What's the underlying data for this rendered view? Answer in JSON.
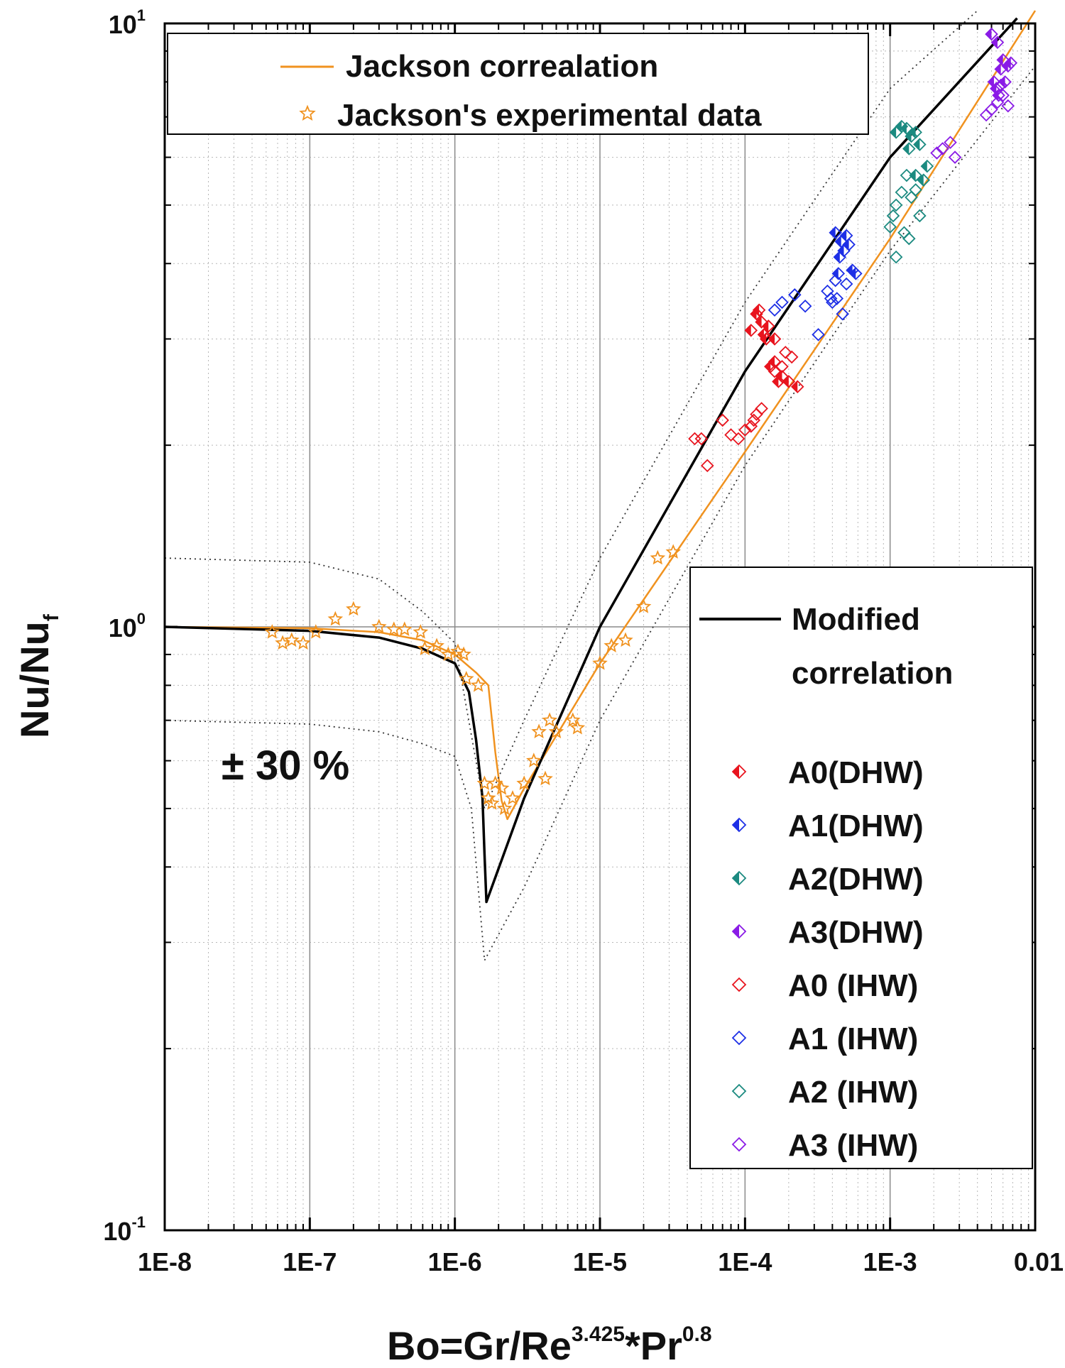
{
  "chart_data": {
    "type": "scatter",
    "scale": "log-log",
    "xlabel": "Bo=Gr/Re",
    "xlabel_sup1": "3.425",
    "xlabel_mid": "*Pr",
    "xlabel_sup2": "0.8",
    "ylabel": "Nu/Nu",
    "ylabel_sub": "f",
    "xlim": [
      1e-08,
      0.01
    ],
    "ylim": [
      0.1,
      10
    ],
    "x_tick_labels": [
      "1E-8",
      "1E-7",
      "1E-6",
      "1E-5",
      "1E-4",
      "1E-3",
      "0.01"
    ],
    "y_tick_labels": [
      {
        "base": "10",
        "exp": "-1"
      },
      {
        "base": "10",
        "exp": "0"
      },
      {
        "base": "10",
        "exp": "1"
      }
    ],
    "grid": true,
    "annotation": "± 30 %",
    "legend_top": {
      "placement": "top-left",
      "items": [
        {
          "label": "Jackson correalation",
          "marker": "line",
          "color": "#f0921f"
        },
        {
          "label": "Jackson's experimental data",
          "marker": "star",
          "color": "#f0921f"
        }
      ]
    },
    "legend_right": {
      "placement": "right",
      "line_label_1": "Modified",
      "line_label_2": "correlation",
      "line_color": "#000000",
      "items": [
        {
          "label": "A0(DHW)",
          "marker": "diamond-half",
          "color": "#e8141e"
        },
        {
          "label": "A1(DHW)",
          "marker": "diamond-half",
          "color": "#1d2fe6"
        },
        {
          "label": "A2(DHW)",
          "marker": "diamond-half",
          "color": "#1b8a80"
        },
        {
          "label": "A3(DHW)",
          "marker": "diamond-half",
          "color": "#8a1be6"
        },
        {
          "label": "A0 (IHW)",
          "marker": "diamond-open",
          "color": "#e8141e"
        },
        {
          "label": "A1 (IHW)",
          "marker": "diamond-open",
          "color": "#1d2fe6"
        },
        {
          "label": "A2 (IHW)",
          "marker": "diamond-open",
          "color": "#1b8a80"
        },
        {
          "label": "A3 (IHW)",
          "marker": "diamond-open",
          "color": "#8a1be6"
        }
      ]
    },
    "series": [
      {
        "name": "Jackson correalation",
        "kind": "line",
        "color": "#f0921f",
        "points": [
          [
            1e-08,
            1.0
          ],
          [
            1e-07,
            0.995
          ],
          [
            3e-07,
            0.98
          ],
          [
            6e-07,
            0.95
          ],
          [
            1e-06,
            0.9
          ],
          [
            1.4e-06,
            0.84
          ],
          [
            1.7e-06,
            0.8
          ],
          [
            1.9e-06,
            0.62
          ],
          [
            2.1e-06,
            0.515
          ],
          [
            2.3e-06,
            0.48
          ],
          [
            3e-06,
            0.54
          ],
          [
            5e-06,
            0.66
          ],
          [
            1e-05,
            0.87
          ],
          [
            0.0001,
            1.95
          ],
          [
            0.001,
            4.4
          ],
          [
            0.01,
            10.5
          ]
        ]
      },
      {
        "name": "Modified correlation",
        "kind": "line",
        "color": "#000000",
        "points": [
          [
            1e-08,
            1.0
          ],
          [
            1e-07,
            0.985
          ],
          [
            3e-07,
            0.96
          ],
          [
            6e-07,
            0.92
          ],
          [
            1e-06,
            0.87
          ],
          [
            1.25e-06,
            0.78
          ],
          [
            1.4e-06,
            0.65
          ],
          [
            1.55e-06,
            0.52
          ],
          [
            1.6e-06,
            0.42
          ],
          [
            1.65e-06,
            0.35
          ],
          [
            3e-06,
            0.52
          ],
          [
            1e-05,
            1.0
          ],
          [
            0.0001,
            2.65
          ],
          [
            0.001,
            6.0
          ],
          [
            0.0075,
            10.2
          ]
        ]
      },
      {
        "name": "+30%",
        "kind": "dotted",
        "color": "#333333",
        "points": [
          [
            1e-08,
            1.3
          ],
          [
            1e-07,
            1.28
          ],
          [
            3e-07,
            1.2
          ],
          [
            6e-07,
            1.06
          ],
          [
            1e-06,
            0.94
          ],
          [
            1.6e-06,
            0.5
          ],
          [
            3e-06,
            0.7
          ],
          [
            1e-05,
            1.3
          ],
          [
            0.0001,
            3.45
          ],
          [
            0.001,
            7.8
          ],
          [
            0.004,
            10.5
          ]
        ]
      },
      {
        "name": "-30%",
        "kind": "dotted",
        "color": "#333333",
        "points": [
          [
            1e-08,
            0.7
          ],
          [
            1e-07,
            0.69
          ],
          [
            3e-07,
            0.67
          ],
          [
            6e-07,
            0.64
          ],
          [
            1e-06,
            0.61
          ],
          [
            1.3e-06,
            0.5
          ],
          [
            1.6e-06,
            0.28
          ],
          [
            3e-06,
            0.37
          ],
          [
            1e-05,
            0.7
          ],
          [
            0.0001,
            1.85
          ],
          [
            0.001,
            4.2
          ],
          [
            0.01,
            8.5
          ]
        ]
      },
      {
        "name": "Jackson's experimental data",
        "kind": "star",
        "color": "#f0921f",
        "points": [
          [
            5.5e-08,
            0.98
          ],
          [
            6.5e-08,
            0.94
          ],
          [
            7.5e-08,
            0.95
          ],
          [
            9e-08,
            0.94
          ],
          [
            1.1e-07,
            0.98
          ],
          [
            1.5e-07,
            1.03
          ],
          [
            2e-07,
            1.07
          ],
          [
            3e-07,
            1.0
          ],
          [
            3.8e-07,
            0.99
          ],
          [
            4.5e-07,
            0.99
          ],
          [
            5.8e-07,
            0.98
          ],
          [
            6.2e-07,
            0.92
          ],
          [
            7.5e-07,
            0.93
          ],
          [
            9e-07,
            0.9
          ],
          [
            1.05e-06,
            0.91
          ],
          [
            1.15e-06,
            0.9
          ],
          [
            1.2e-06,
            0.82
          ],
          [
            1.45e-06,
            0.8
          ],
          [
            1.6e-06,
            0.55
          ],
          [
            1.7e-06,
            0.52
          ],
          [
            1.8e-06,
            0.51
          ],
          [
            1.9e-06,
            0.55
          ],
          [
            2.1e-06,
            0.54
          ],
          [
            2.2e-06,
            0.5
          ],
          [
            2.5e-06,
            0.52
          ],
          [
            3e-06,
            0.55
          ],
          [
            3.5e-06,
            0.6
          ],
          [
            3.8e-06,
            0.67
          ],
          [
            4.2e-06,
            0.56
          ],
          [
            4.5e-06,
            0.7
          ],
          [
            5e-06,
            0.67
          ],
          [
            6.5e-06,
            0.7
          ],
          [
            7e-06,
            0.68
          ],
          [
            1e-05,
            0.87
          ],
          [
            1.2e-05,
            0.93
          ],
          [
            1.5e-05,
            0.95
          ],
          [
            2e-05,
            1.08
          ],
          [
            2.5e-05,
            1.3
          ],
          [
            3.2e-05,
            1.33
          ]
        ]
      },
      {
        "name": "A0(DHW)",
        "kind": "diamond-half",
        "color": "#e8141e",
        "points": [
          [
            0.00011,
            3.1
          ],
          [
            0.00012,
            3.3
          ],
          [
            0.00013,
            3.2
          ],
          [
            0.000135,
            3.05
          ],
          [
            0.000145,
            3.15
          ],
          [
            0.00016,
            3.0
          ],
          [
            0.00015,
            2.7
          ],
          [
            0.00016,
            2.75
          ],
          [
            0.00018,
            2.6
          ],
          [
            0.00017,
            2.55
          ],
          [
            0.0002,
            2.55
          ],
          [
            0.00023,
            2.5
          ],
          [
            0.000125,
            3.35
          ],
          [
            0.00014,
            3.0
          ]
        ]
      },
      {
        "name": "A1(DHW)",
        "kind": "diamond-half",
        "color": "#1d2fe6",
        "points": [
          [
            0.00042,
            4.5
          ],
          [
            0.00046,
            4.35
          ],
          [
            0.0005,
            4.45
          ],
          [
            0.00048,
            4.2
          ],
          [
            0.00052,
            4.3
          ],
          [
            0.00044,
            3.85
          ],
          [
            0.00055,
            3.9
          ],
          [
            0.00045,
            4.1
          ],
          [
            0.00058,
            3.85
          ]
        ]
      },
      {
        "name": "A2(DHW)",
        "kind": "diamond-half",
        "color": "#1b8a80",
        "points": [
          [
            0.0011,
            6.6
          ],
          [
            0.0012,
            6.75
          ],
          [
            0.0013,
            6.7
          ],
          [
            0.0014,
            6.5
          ],
          [
            0.0015,
            6.6
          ],
          [
            0.0016,
            6.3
          ],
          [
            0.00135,
            6.2
          ],
          [
            0.0017,
            5.5
          ],
          [
            0.0015,
            5.6
          ],
          [
            0.0018,
            5.8
          ]
        ]
      },
      {
        "name": "A3(DHW)",
        "kind": "diamond-half",
        "color": "#8a1be6",
        "points": [
          [
            0.005,
            9.6
          ],
          [
            0.0055,
            9.3
          ],
          [
            0.006,
            8.7
          ],
          [
            0.0058,
            8.4
          ],
          [
            0.0065,
            8.5
          ],
          [
            0.0052,
            8.0
          ],
          [
            0.0062,
            8.0
          ],
          [
            0.0056,
            7.6
          ],
          [
            0.0068,
            8.6
          ],
          [
            0.0054,
            7.8
          ]
        ]
      },
      {
        "name": "A0 (IHW)",
        "kind": "diamond-open",
        "color": "#e8141e",
        "points": [
          [
            4.5e-05,
            2.05
          ],
          [
            5e-05,
            2.05
          ],
          [
            5.5e-05,
            1.85
          ],
          [
            7e-05,
            2.2
          ],
          [
            8e-05,
            2.08
          ],
          [
            9e-05,
            2.05
          ],
          [
            0.0001,
            2.12
          ],
          [
            0.00011,
            2.15
          ],
          [
            0.00012,
            2.25
          ],
          [
            0.00013,
            2.3
          ],
          [
            0.000115,
            2.2
          ],
          [
            0.00016,
            2.65
          ],
          [
            0.00018,
            2.7
          ],
          [
            0.00019,
            2.85
          ],
          [
            0.00021,
            2.8
          ]
        ]
      },
      {
        "name": "A1 (IHW)",
        "kind": "diamond-open",
        "color": "#1d2fe6",
        "points": [
          [
            0.00016,
            3.35
          ],
          [
            0.00018,
            3.45
          ],
          [
            0.00022,
            3.55
          ],
          [
            0.00026,
            3.4
          ],
          [
            0.00032,
            3.05
          ],
          [
            0.00037,
            3.6
          ],
          [
            0.0004,
            3.45
          ],
          [
            0.00043,
            3.5
          ],
          [
            0.00047,
            3.3
          ],
          [
            0.00042,
            3.75
          ],
          [
            0.00039,
            3.5
          ],
          [
            0.0005,
            3.7
          ]
        ]
      },
      {
        "name": "A2 (IHW)",
        "kind": "diamond-open",
        "color": "#1b8a80",
        "points": [
          [
            0.001,
            4.6
          ],
          [
            0.00105,
            4.8
          ],
          [
            0.0011,
            5.0
          ],
          [
            0.0012,
            5.25
          ],
          [
            0.0013,
            5.6
          ],
          [
            0.0014,
            5.15
          ],
          [
            0.0015,
            5.3
          ],
          [
            0.0016,
            4.8
          ],
          [
            0.00125,
            4.5
          ],
          [
            0.00135,
            4.4
          ],
          [
            0.0011,
            4.1
          ]
        ]
      },
      {
        "name": "A3 (IHW)",
        "kind": "diamond-open",
        "color": "#8a1be6",
        "points": [
          [
            0.0021,
            6.1
          ],
          [
            0.0023,
            6.2
          ],
          [
            0.0026,
            6.35
          ],
          [
            0.0028,
            6.0
          ],
          [
            0.0046,
            7.05
          ],
          [
            0.005,
            7.2
          ],
          [
            0.0055,
            7.4
          ],
          [
            0.006,
            7.6
          ],
          [
            0.0065,
            7.3
          ],
          [
            0.0058,
            7.9
          ]
        ]
      }
    ]
  }
}
